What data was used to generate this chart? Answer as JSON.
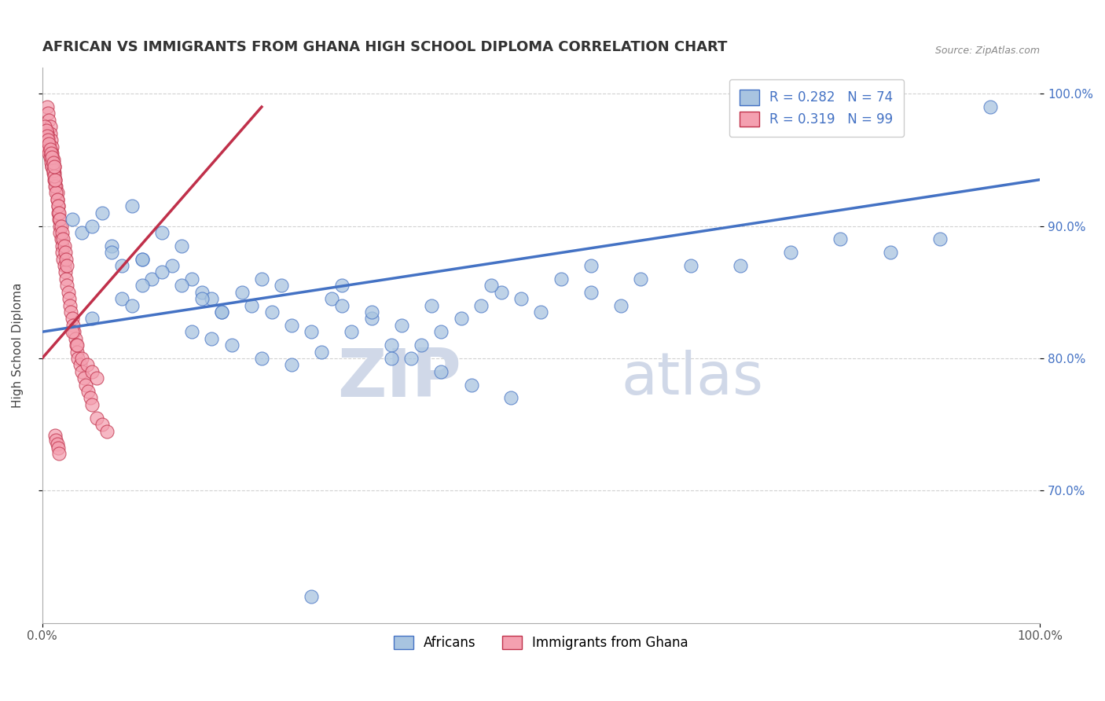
{
  "title": "AFRICAN VS IMMIGRANTS FROM GHANA HIGH SCHOOL DIPLOMA CORRELATION CHART",
  "source": "Source: ZipAtlas.com",
  "ylabel": "High School Diploma",
  "africans_color": "#a8c4e0",
  "ghana_color": "#f4a0b0",
  "trendline_blue": "#4472c4",
  "trendline_pink": "#c0304a",
  "bottom_label_africans": "Africans",
  "bottom_label_ghana": "Immigrants from Ghana",
  "watermark_zip": "ZIP",
  "watermark_atlas": "atlas",
  "watermark_color": "#d0d8e8",
  "background_color": "#ffffff",
  "grid_color": "#cccccc",
  "xlim": [
    0.0,
    1.0
  ],
  "ylim": [
    0.6,
    1.02
  ],
  "africans_x": [
    0.03,
    0.04,
    0.05,
    0.06,
    0.07,
    0.08,
    0.09,
    0.1,
    0.11,
    0.12,
    0.08,
    0.09,
    0.1,
    0.13,
    0.14,
    0.15,
    0.16,
    0.17,
    0.18,
    0.05,
    0.07,
    0.1,
    0.12,
    0.14,
    0.16,
    0.18,
    0.2,
    0.22,
    0.24,
    0.15,
    0.17,
    0.19,
    0.21,
    0.23,
    0.25,
    0.27,
    0.29,
    0.3,
    0.22,
    0.25,
    0.28,
    0.31,
    0.33,
    0.35,
    0.37,
    0.3,
    0.33,
    0.36,
    0.39,
    0.35,
    0.38,
    0.4,
    0.42,
    0.44,
    0.46,
    0.45,
    0.48,
    0.5,
    0.52,
    0.55,
    0.4,
    0.43,
    0.47,
    0.55,
    0.58,
    0.6,
    0.65,
    0.7,
    0.75,
    0.8,
    0.85,
    0.9,
    0.95,
    0.27
  ],
  "africans_y": [
    0.905,
    0.895,
    0.9,
    0.91,
    0.885,
    0.87,
    0.915,
    0.875,
    0.86,
    0.895,
    0.845,
    0.84,
    0.855,
    0.87,
    0.885,
    0.86,
    0.85,
    0.845,
    0.835,
    0.83,
    0.88,
    0.875,
    0.865,
    0.855,
    0.845,
    0.835,
    0.85,
    0.86,
    0.855,
    0.82,
    0.815,
    0.81,
    0.84,
    0.835,
    0.825,
    0.82,
    0.845,
    0.855,
    0.8,
    0.795,
    0.805,
    0.82,
    0.83,
    0.81,
    0.8,
    0.84,
    0.835,
    0.825,
    0.84,
    0.8,
    0.81,
    0.82,
    0.83,
    0.84,
    0.85,
    0.855,
    0.845,
    0.835,
    0.86,
    0.87,
    0.79,
    0.78,
    0.77,
    0.85,
    0.84,
    0.86,
    0.87,
    0.87,
    0.88,
    0.89,
    0.88,
    0.89,
    0.99,
    0.62
  ],
  "ghana_x": [
    0.005,
    0.006,
    0.007,
    0.008,
    0.008,
    0.009,
    0.01,
    0.01,
    0.011,
    0.012,
    0.012,
    0.013,
    0.014,
    0.015,
    0.015,
    0.016,
    0.016,
    0.017,
    0.018,
    0.018,
    0.019,
    0.02,
    0.02,
    0.021,
    0.022,
    0.023,
    0.024,
    0.025,
    0.026,
    0.027,
    0.028,
    0.029,
    0.03,
    0.031,
    0.032,
    0.033,
    0.034,
    0.035,
    0.036,
    0.038,
    0.04,
    0.042,
    0.044,
    0.046,
    0.048,
    0.05,
    0.055,
    0.06,
    0.065,
    0.005,
    0.007,
    0.008,
    0.009,
    0.01,
    0.011,
    0.012,
    0.013,
    0.014,
    0.015,
    0.016,
    0.017,
    0.018,
    0.019,
    0.02,
    0.021,
    0.022,
    0.023,
    0.024,
    0.025,
    0.005,
    0.006,
    0.007,
    0.008,
    0.009,
    0.01,
    0.011,
    0.012,
    0.013,
    0.03,
    0.035,
    0.04,
    0.045,
    0.05,
    0.055,
    0.003,
    0.004,
    0.005,
    0.006,
    0.007,
    0.008,
    0.009,
    0.01,
    0.011,
    0.012,
    0.013,
    0.014,
    0.015,
    0.016,
    0.017
  ],
  "ghana_y": [
    0.99,
    0.985,
    0.98,
    0.975,
    0.97,
    0.965,
    0.96,
    0.955,
    0.95,
    0.945,
    0.94,
    0.935,
    0.93,
    0.925,
    0.92,
    0.915,
    0.91,
    0.905,
    0.9,
    0.895,
    0.89,
    0.885,
    0.88,
    0.875,
    0.87,
    0.865,
    0.86,
    0.855,
    0.85,
    0.845,
    0.84,
    0.835,
    0.83,
    0.825,
    0.82,
    0.815,
    0.81,
    0.805,
    0.8,
    0.795,
    0.79,
    0.785,
    0.78,
    0.775,
    0.77,
    0.765,
    0.755,
    0.75,
    0.745,
    0.97,
    0.96,
    0.955,
    0.95,
    0.945,
    0.94,
    0.935,
    0.93,
    0.925,
    0.92,
    0.915,
    0.91,
    0.905,
    0.9,
    0.895,
    0.89,
    0.885,
    0.88,
    0.875,
    0.87,
    0.96,
    0.958,
    0.955,
    0.952,
    0.948,
    0.945,
    0.942,
    0.938,
    0.935,
    0.82,
    0.81,
    0.8,
    0.795,
    0.79,
    0.785,
    0.975,
    0.972,
    0.968,
    0.965,
    0.962,
    0.958,
    0.955,
    0.952,
    0.948,
    0.945,
    0.742,
    0.738,
    0.735,
    0.732,
    0.728
  ],
  "blue_trendline_x": [
    0.0,
    1.0
  ],
  "blue_trendline_y": [
    0.82,
    0.935
  ],
  "pink_trendline_x": [
    0.0,
    0.22
  ],
  "pink_trendline_y": [
    0.8,
    0.99
  ]
}
